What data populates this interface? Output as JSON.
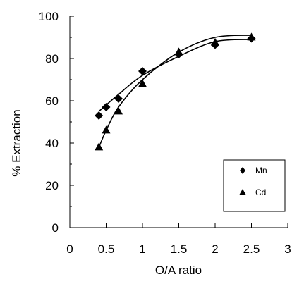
{
  "chart_data": {
    "type": "scatter",
    "xlabel": "O/A ratio",
    "ylabel": "% Extraction",
    "xlim": [
      0,
      3
    ],
    "ylim": [
      0,
      100
    ],
    "x_ticks": [
      "0",
      "0.5",
      "1",
      "1.5",
      "2",
      "2.5",
      "3"
    ],
    "y_ticks": [
      "0",
      "20",
      "40",
      "60",
      "80",
      "100"
    ],
    "grid": false,
    "legend_position": "bottom-right",
    "series": [
      {
        "name": "Mn",
        "marker": "diamond",
        "color": "#000000",
        "x": [
          0.4,
          0.5,
          0.67,
          1.0,
          1.5,
          2.0,
          2.5
        ],
        "y": [
          53,
          57,
          61,
          74,
          82,
          86.5,
          89.5
        ],
        "trend_x": [
          0.4,
          0.5,
          0.67,
          1.0,
          1.5,
          2.0,
          2.5
        ],
        "trend_y": [
          55,
          58,
          63,
          72,
          81,
          88,
          89
        ]
      },
      {
        "name": "Cd",
        "marker": "triangle",
        "color": "#000000",
        "x": [
          0.4,
          0.5,
          0.67,
          1.0,
          1.5,
          2.0,
          2.5
        ],
        "y": [
          38,
          46,
          55,
          68,
          83,
          87.5,
          90
        ],
        "trend_x": [
          0.4,
          0.5,
          0.67,
          1.0,
          1.5,
          2.0,
          2.5
        ],
        "trend_y": [
          38,
          46,
          57,
          70,
          83,
          90,
          91
        ]
      }
    ]
  }
}
